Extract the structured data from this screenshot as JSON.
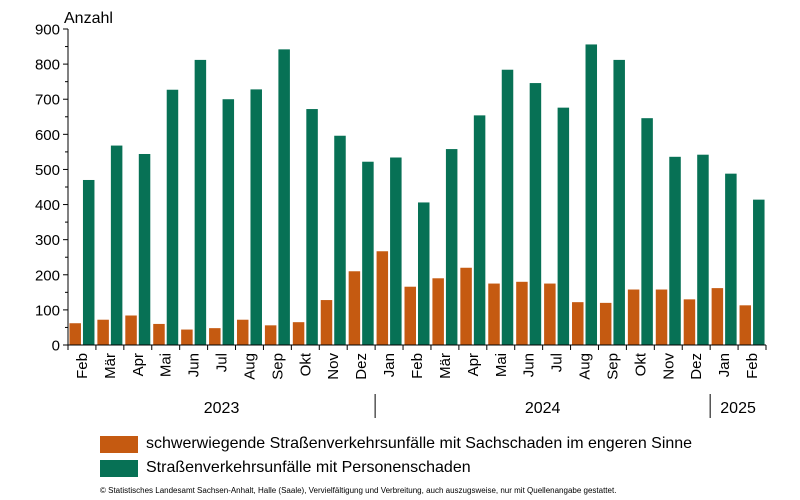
{
  "chart_data": {
    "type": "bar",
    "ylabel": "Anzahl",
    "ylim": [
      0,
      900
    ],
    "yticks": [
      0,
      100,
      200,
      300,
      400,
      500,
      600,
      700,
      800,
      900
    ],
    "grid": false,
    "legend_position": "bottom",
    "categories": [
      "Feb",
      "Mär",
      "Apr",
      "Mai",
      "Jun",
      "Jul",
      "Aug",
      "Sep",
      "Okt",
      "Nov",
      "Dez",
      "Jan",
      "Feb",
      "Mär",
      "Apr",
      "Mai",
      "Jun",
      "Jul",
      "Aug",
      "Sep",
      "Okt",
      "Nov",
      "Dez",
      "Jan",
      "Feb"
    ],
    "years": [
      {
        "label": "2023",
        "start": 0,
        "end": 10
      },
      {
        "label": "2024",
        "start": 11,
        "end": 22
      },
      {
        "label": "2025",
        "start": 23,
        "end": 24
      }
    ],
    "series": [
      {
        "name": "schwerwiegende Straßenverkehrsunfälle mit Sachschaden im engeren Sinne",
        "color": "#c55a11",
        "values": [
          62,
          72,
          84,
          60,
          44,
          48,
          72,
          56,
          65,
          128,
          210,
          267,
          166,
          190,
          220,
          175,
          180,
          175,
          122,
          120,
          158,
          158,
          130,
          162,
          113
        ]
      },
      {
        "name": "Straßenverkehrsunfälle mit Personenschaden",
        "color": "#077155",
        "values": [
          470,
          568,
          544,
          727,
          812,
          700,
          728,
          842,
          672,
          596,
          522,
          534,
          406,
          558,
          654,
          784,
          746,
          676,
          856,
          812,
          646,
          536,
          542,
          488,
          414
        ]
      }
    ]
  },
  "footer": "© Statistisches Landesamt Sachsen-Anhalt, Halle (Saale), Vervielfältigung und Verbreitung, auch auszugsweise, nur mit Quellenangabe gestattet."
}
